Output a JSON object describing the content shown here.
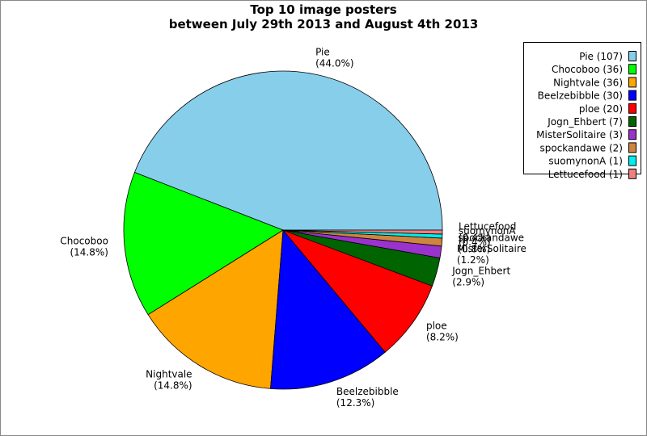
{
  "chart_data": {
    "type": "pie",
    "title": "Top 10 image posters",
    "subtitle": "between July 29th 2013 and August 4th 2013",
    "categories": [
      "Pie",
      "Chocoboo",
      "Nightvale",
      "Beelzebibble",
      "ploe",
      "Jogn_Ehbert",
      "MisterSolitaire",
      "spockandawe",
      "suomynonA",
      "Lettucefood"
    ],
    "values": [
      44.0,
      14.8,
      14.8,
      12.3,
      8.2,
      2.9,
      1.2,
      0.8,
      0.4,
      0.4
    ],
    "value_labels": [
      "(44.0%)",
      "(14.8%)",
      "(14.8%)",
      "(12.3%)",
      "(8.2%)",
      "(2.9%)",
      "(1.2%)",
      "(0.8%)",
      "(0.4%)",
      "(0.4%)"
    ],
    "legend_labels": [
      "Pie (107)",
      "Chocoboo (36)",
      "Nightvale (36)",
      "Beelzebibble (30)",
      "ploe (20)",
      "Jogn_Ehbert (7)",
      "MisterSolitaire (3)",
      "spockandawe (2)",
      "suomynonA (1)",
      "Lettucefood (1)"
    ],
    "colors": [
      "#87ceeb",
      "#00ff00",
      "#ffa500",
      "#0000ff",
      "#ff0000",
      "#006400",
      "#9a32cd",
      "#cd853f",
      "#00eeee",
      "#f08080"
    ],
    "legend": "upper right"
  }
}
